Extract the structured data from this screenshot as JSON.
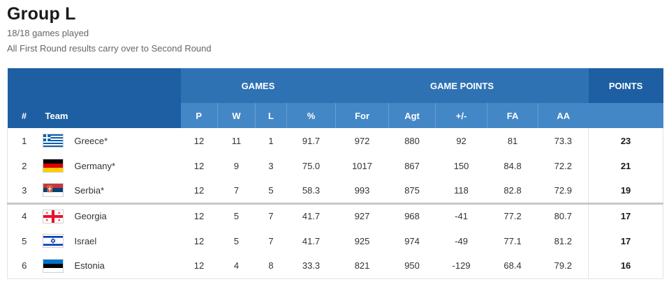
{
  "header": {
    "title": "Group L",
    "games_played": "18/18 games played",
    "note": "All First Round results carry over to Second Round"
  },
  "table": {
    "group_headers": {
      "games": "GAMES",
      "game_points": "GAME POINTS",
      "points": "POINTS"
    },
    "columns": [
      "#",
      "Team",
      "P",
      "W",
      "L",
      "%",
      "For",
      "Agt",
      "+/-",
      "FA",
      "AA"
    ],
    "rows": [
      {
        "rank": "1",
        "team": "Greece*",
        "flag": "greece-flag-icon",
        "p": "12",
        "w": "11",
        "l": "1",
        "pct": "91.7",
        "for": "972",
        "agt": "880",
        "diff": "92",
        "fa": "81",
        "aa": "73.3",
        "pts": "23"
      },
      {
        "rank": "2",
        "team": "Germany*",
        "flag": "germany-flag-icon",
        "p": "12",
        "w": "9",
        "l": "3",
        "pct": "75.0",
        "for": "1017",
        "agt": "867",
        "diff": "150",
        "fa": "84.8",
        "aa": "72.2",
        "pts": "21"
      },
      {
        "rank": "3",
        "team": "Serbia*",
        "flag": "serbia-flag-icon",
        "p": "12",
        "w": "7",
        "l": "5",
        "pct": "58.3",
        "for": "993",
        "agt": "875",
        "diff": "118",
        "fa": "82.8",
        "aa": "72.9",
        "pts": "19"
      },
      {
        "rank": "4",
        "team": "Georgia",
        "flag": "georgia-flag-icon",
        "p": "12",
        "w": "5",
        "l": "7",
        "pct": "41.7",
        "for": "927",
        "agt": "968",
        "diff": "-41",
        "fa": "77.2",
        "aa": "80.7",
        "pts": "17"
      },
      {
        "rank": "5",
        "team": "Israel",
        "flag": "israel-flag-icon",
        "p": "12",
        "w": "5",
        "l": "7",
        "pct": "41.7",
        "for": "925",
        "agt": "974",
        "diff": "-49",
        "fa": "77.1",
        "aa": "81.2",
        "pts": "17"
      },
      {
        "rank": "6",
        "team": "Estonia",
        "flag": "estonia-flag-icon",
        "p": "12",
        "w": "4",
        "l": "8",
        "pct": "33.3",
        "for": "821",
        "agt": "950",
        "diff": "-129",
        "fa": "68.4",
        "aa": "79.2",
        "pts": "16"
      }
    ]
  },
  "colors": {
    "header_dark": "#1d5fa2",
    "header_mid": "#2f72b4",
    "header_light": "#4487c6",
    "separator": "#c8c8c8"
  }
}
